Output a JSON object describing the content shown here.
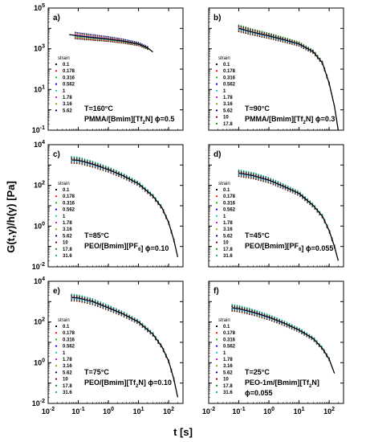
{
  "figure": {
    "ylabel": "G(t,γ)/h(γ) [Pa]",
    "xlabel": "t [s]",
    "strain_title": "strain"
  },
  "chart_data": [
    {
      "panel": "a)",
      "type": "line",
      "temperature": "T=160°C",
      "material": "PMMA/[Bmim][Tf2N] ϕ=0.5",
      "xscale": "log",
      "yscale": "log",
      "xlim": [
        0.01,
        300
      ],
      "ylim": [
        0.1,
        100000
      ],
      "xticks": [],
      "yticks": [
        "10^5",
        "10^3",
        "10^1",
        "10^-1"
      ],
      "legend_title": "strain",
      "strain_levels": [
        "0.1",
        "0.178",
        "0.316",
        "0.562",
        "1",
        "1.78",
        "3.16",
        "5.62"
      ],
      "series_colors": [
        "#000000",
        "#ff0000",
        "#00cc00",
        "#0000ff",
        "#00cccc",
        "#cc00cc",
        "#999900",
        "#000080"
      ],
      "model_line": {
        "x": [
          0.05,
          0.1,
          0.3,
          1,
          3,
          10,
          20,
          30
        ],
        "y": [
          5000,
          4300,
          3600,
          3000,
          2400,
          1700,
          1100,
          700
        ]
      },
      "data_range": {
        "t": [
          0.08,
          20
        ],
        "y": [
          4500,
          1300
        ]
      }
    },
    {
      "panel": "b)",
      "type": "line",
      "temperature": "T=90°C",
      "material": "PMMA/[Bmim][Tf2N] ϕ=0.3",
      "xscale": "log",
      "yscale": "log",
      "xlim": [
        0.01,
        300
      ],
      "ylim": [
        0.1,
        100000
      ],
      "xticks": [],
      "yticks": [],
      "legend_title": "strain",
      "strain_levels": [
        "0.1",
        "0.178",
        "0.316",
        "0.562",
        "1",
        "1.78",
        "3.16",
        "5.62",
        "10",
        "17.8"
      ],
      "series_colors": [
        "#000000",
        "#ff0000",
        "#00cc00",
        "#0000ff",
        "#00cccc",
        "#cc00cc",
        "#999900",
        "#000080",
        "#800000",
        "#008000"
      ],
      "model_line": {
        "x": [
          0.1,
          0.3,
          1,
          3,
          10,
          30,
          60,
          100,
          150,
          200
        ],
        "y": [
          10000,
          6500,
          4300,
          2800,
          1700,
          700,
          200,
          20,
          1.5,
          0.1
        ]
      },
      "data_range": {
        "t": [
          0.1,
          100
        ],
        "y": [
          20000,
          100
        ]
      }
    },
    {
      "panel": "c)",
      "type": "line",
      "temperature": "T=85°C",
      "material": "PEO/[Bmim][PF6] ϕ=0.10",
      "xscale": "log",
      "yscale": "log",
      "xlim": [
        0.01,
        300
      ],
      "ylim": [
        0.01,
        10000
      ],
      "xticks": [],
      "yticks": [
        "10^4",
        "10^2",
        "10^0",
        "10^-2"
      ],
      "legend_title": "strain",
      "strain_levels": [
        "0.1",
        "0.178",
        "0.316",
        "0.562",
        "1",
        "1.78",
        "3.16",
        "5.62",
        "10",
        "17.8",
        "31.6"
      ],
      "series_colors": [
        "#000000",
        "#ff0000",
        "#00cc00",
        "#0000ff",
        "#00cccc",
        "#cc00cc",
        "#999900",
        "#000080",
        "#800000",
        "#008000",
        "#00aaaa"
      ],
      "model_line": {
        "x": [
          0.06,
          0.1,
          0.3,
          1,
          3,
          10,
          30,
          60,
          100,
          150,
          200
        ],
        "y": [
          1800,
          1700,
          1100,
          600,
          300,
          120,
          30,
          8,
          1.5,
          0.2,
          0.03
        ]
      },
      "data_range": {
        "t": [
          0.06,
          150
        ],
        "y": [
          2000,
          5
        ]
      }
    },
    {
      "panel": "d)",
      "type": "line",
      "temperature": "T=45°C",
      "material": "PEO/[Bmim][PF6] ϕ=0.055",
      "xscale": "log",
      "yscale": "log",
      "xlim": [
        0.01,
        300
      ],
      "ylim": [
        0.01,
        10000
      ],
      "xticks": [],
      "yticks": [],
      "legend_title": "strain",
      "strain_levels": [
        "0.1",
        "0.178",
        "0.316",
        "0.562",
        "1",
        "1.78",
        "3.16",
        "5.62",
        "10",
        "17.8",
        "31.6"
      ],
      "series_colors": [
        "#000000",
        "#ff0000",
        "#00cc00",
        "#0000ff",
        "#00cccc",
        "#cc00cc",
        "#999900",
        "#000080",
        "#800000",
        "#008000",
        "#00aaaa"
      ],
      "model_line": {
        "x": [
          0.1,
          0.3,
          1,
          3,
          10,
          30,
          60,
          100,
          150,
          200
        ],
        "y": [
          400,
          300,
          180,
          90,
          40,
          10,
          3,
          0.6,
          0.1,
          0.02
        ]
      },
      "data_range": {
        "t": [
          0.1,
          150
        ],
        "y": [
          1500,
          3
        ]
      }
    },
    {
      "panel": "e)",
      "type": "line",
      "temperature": "T=75°C",
      "material": "PEO/[Bmim][Tf2N] ϕ=0.10",
      "xscale": "log",
      "yscale": "log",
      "xlim": [
        0.01,
        300
      ],
      "ylim": [
        0.01,
        10000
      ],
      "xticks": [
        "10^-2",
        "10^-1",
        "10^0",
        "10^1",
        "10^2"
      ],
      "yticks": [
        "10^4",
        "10^2",
        "10^0",
        "10^-2"
      ],
      "legend_title": "strain",
      "strain_levels": [
        "0.1",
        "0.178",
        "0.316",
        "0.562",
        "1",
        "1.78",
        "3.16",
        "5.62",
        "10",
        "17.8",
        "31.6"
      ],
      "series_colors": [
        "#000000",
        "#ff0000",
        "#00cc00",
        "#0000ff",
        "#00cccc",
        "#cc00cc",
        "#999900",
        "#000080",
        "#800000",
        "#008000",
        "#00aaaa"
      ],
      "model_line": {
        "x": [
          0.06,
          0.1,
          0.3,
          1,
          3,
          10,
          30,
          60,
          100,
          150,
          200
        ],
        "y": [
          1600,
          1500,
          1000,
          500,
          250,
          100,
          25,
          6,
          1.2,
          0.15,
          0.02
        ]
      },
      "data_range": {
        "t": [
          0.06,
          150
        ],
        "y": [
          1800,
          5
        ]
      }
    },
    {
      "panel": "f)",
      "type": "line",
      "temperature": "T=25°C",
      "material": "PEO-1m/[Bmim][Tf2N]",
      "material2": "ϕ=0.055",
      "xscale": "log",
      "yscale": "log",
      "xlim": [
        0.01,
        300
      ],
      "ylim": [
        0.01,
        10000
      ],
      "xticks": [
        "10^-2",
        "10^-1",
        "10^0",
        "10^1",
        "10^2"
      ],
      "yticks": [],
      "legend_title": "strain",
      "strain_levels": [
        "0.1",
        "0.178",
        "0.316",
        "0.562",
        "1",
        "1.78",
        "3.16",
        "5.62",
        "10",
        "17.8",
        "31.6"
      ],
      "series_colors": [
        "#000000",
        "#ff0000",
        "#00cc00",
        "#0000ff",
        "#00cccc",
        "#cc00cc",
        "#999900",
        "#000080",
        "#800000",
        "#008000",
        "#00aaaa"
      ],
      "model_line": {
        "x": [
          0.06,
          0.1,
          0.3,
          1,
          3,
          10,
          30,
          60,
          100,
          150
        ],
        "y": [
          500,
          450,
          300,
          170,
          90,
          40,
          15,
          5,
          1.5,
          0.3
        ]
      },
      "data_range": {
        "t": [
          0.06,
          100
        ],
        "y": [
          800,
          2
        ]
      }
    }
  ]
}
